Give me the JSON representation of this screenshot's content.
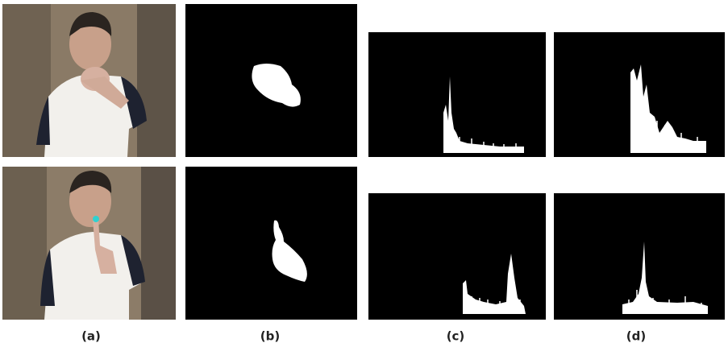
{
  "panels": {
    "labels": [
      "(a)",
      "(b)",
      "(c)",
      "(d)"
    ]
  }
}
